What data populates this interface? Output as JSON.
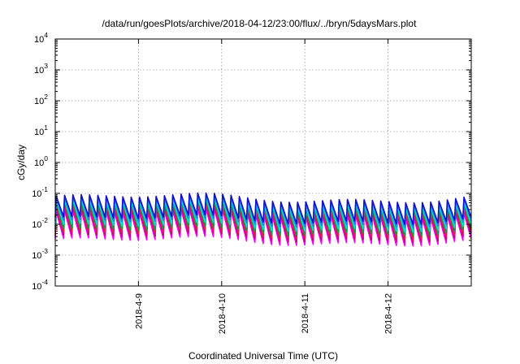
{
  "chart_data": {
    "type": "line",
    "title": "/data/run/goesPlots/archive/2018-04-12/23:00/flux/../bryn/5daysMars.plot",
    "xlabel": "Coordinated Universal Time (UTC)",
    "ylabel": "cGy/day",
    "yscale": "log",
    "ylim": [
      0.0001,
      10000
    ],
    "xlim": [
      "2018-04-08 00:00",
      "2018-04-13 00:00"
    ],
    "grid": true,
    "legend": "none",
    "x_ticks": [
      {
        "value": "2018-04-09",
        "label": "2018-4-9"
      },
      {
        "value": "2018-04-10",
        "label": "2018-4-10"
      },
      {
        "value": "2018-04-11",
        "label": "2018-4-11"
      },
      {
        "value": "2018-04-12",
        "label": "2018-4-12"
      }
    ],
    "y_ticks": [
      {
        "value": 0.0001,
        "base": "10",
        "exp": "-4"
      },
      {
        "value": 0.001,
        "base": "10",
        "exp": "-3"
      },
      {
        "value": 0.01,
        "base": "10",
        "exp": "-2"
      },
      {
        "value": 0.1,
        "base": "10",
        "exp": "-1"
      },
      {
        "value": 1,
        "base": "10",
        "exp": "0"
      },
      {
        "value": 10,
        "base": "10",
        "exp": "1"
      },
      {
        "value": 100,
        "base": "10",
        "exp": "2"
      },
      {
        "value": 1000,
        "base": "10",
        "exp": "3"
      },
      {
        "value": 10000,
        "base": "10",
        "exp": "4"
      }
    ],
    "cycles_per_day": 10,
    "series": [
      {
        "color": "#ff00ff",
        "peak": 0.022,
        "trough": 0.0028
      },
      {
        "color": "#c8007a",
        "peak": 0.028,
        "trough": 0.0036
      },
      {
        "color": "#e0204a",
        "peak": 0.034,
        "trough": 0.0046
      },
      {
        "color": "#00a040",
        "peak": 0.042,
        "trough": 0.006
      },
      {
        "color": "#00dede",
        "peak": 0.05,
        "trough": 0.008
      },
      {
        "color": "#2a7af0",
        "peak": 0.06,
        "trough": 0.011
      },
      {
        "color": "#1010c8",
        "peak": 0.07,
        "trough": 0.014
      }
    ]
  }
}
